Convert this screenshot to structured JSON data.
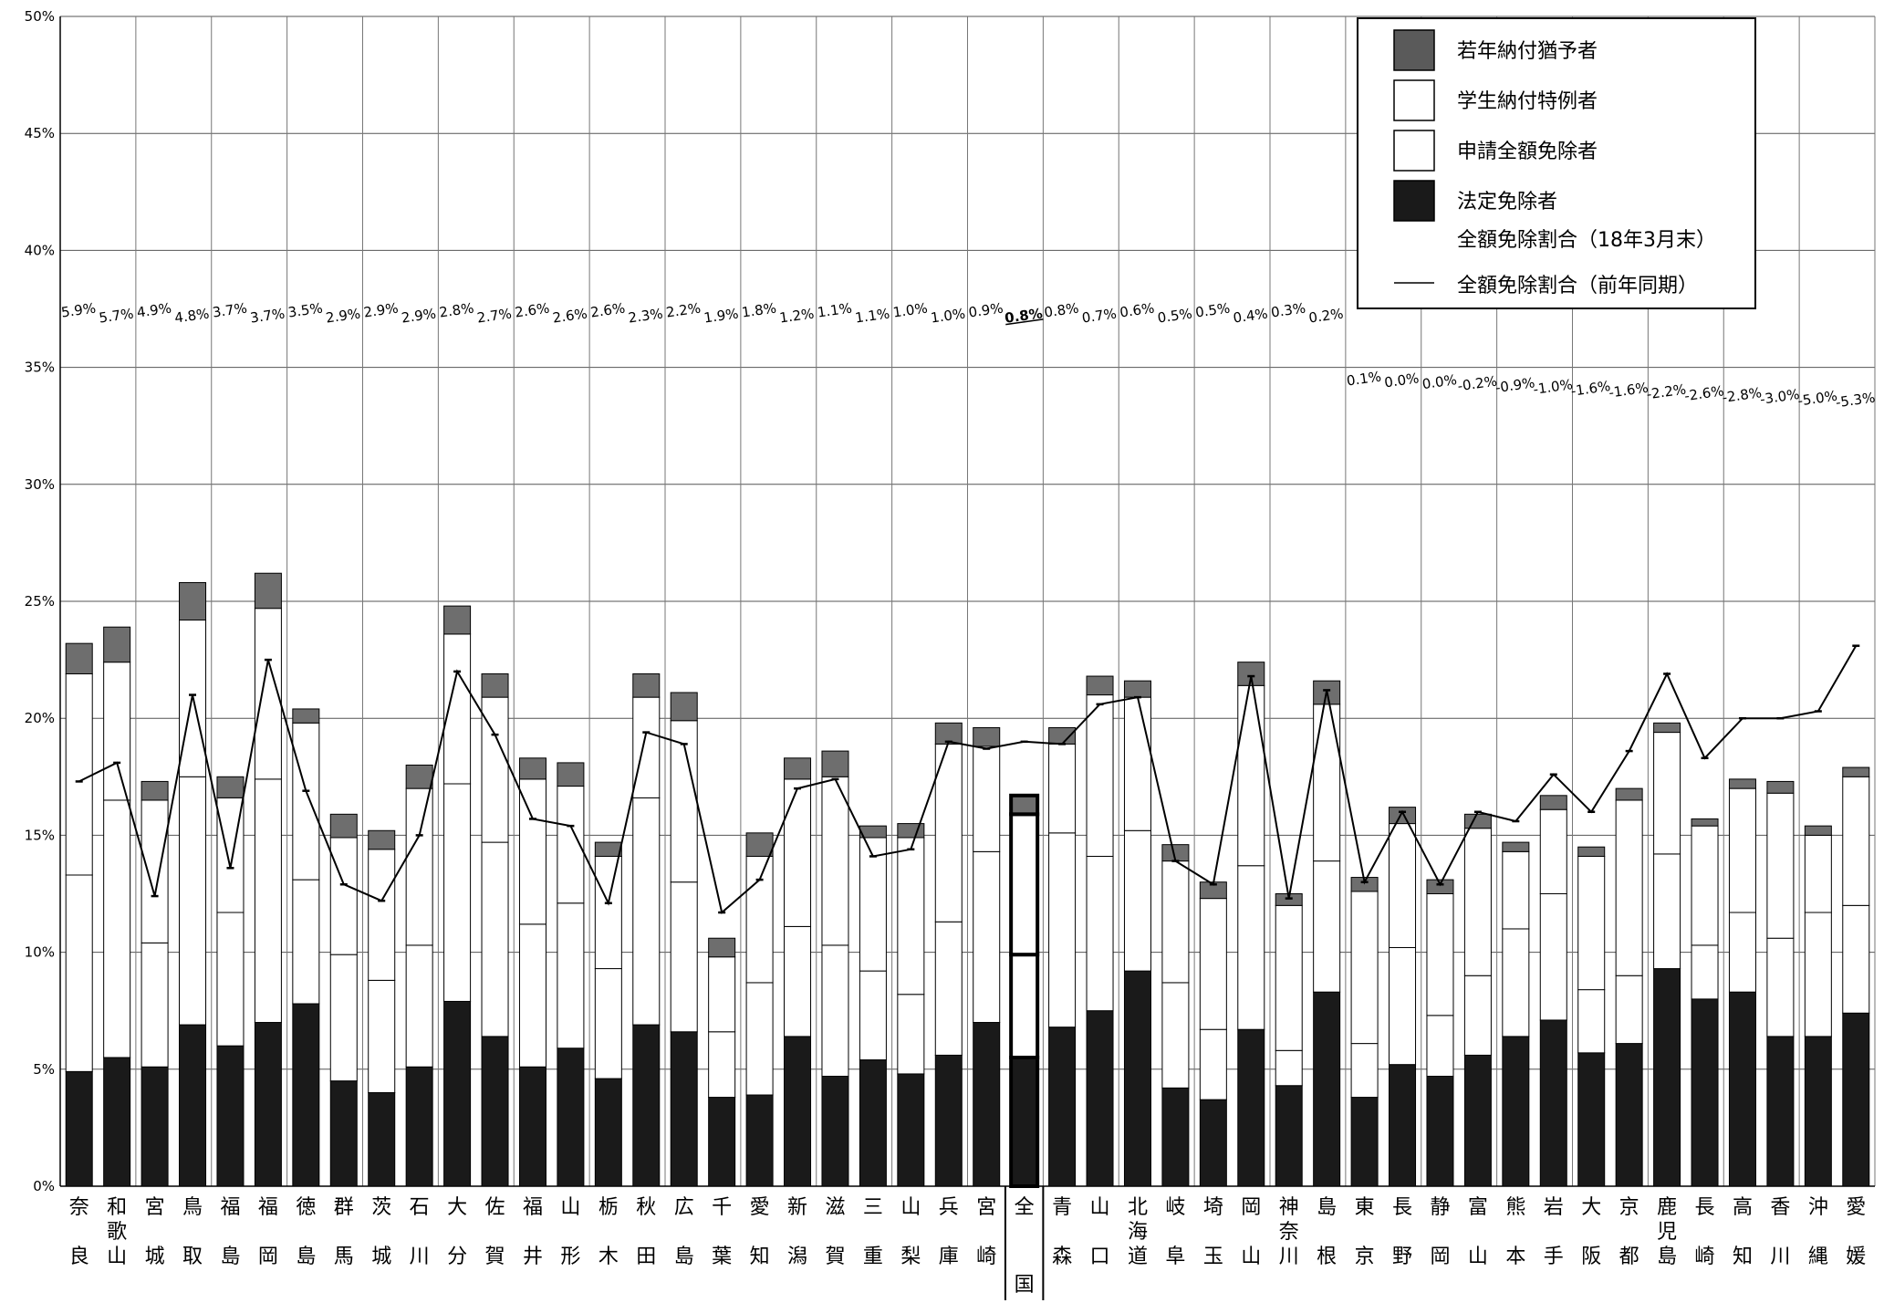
{
  "chart_data": {
    "type": "bar",
    "stacked": true,
    "title": "",
    "xlabel": "",
    "ylabel": "",
    "ylim": [
      0,
      50
    ],
    "y_ticks": [
      "0%",
      "5%",
      "10%",
      "15%",
      "20%",
      "25%",
      "30%",
      "35%",
      "40%",
      "45%",
      "50%"
    ],
    "grid": true,
    "legend_position": "top-right",
    "categories": [
      "奈良",
      "和歌山",
      "宮城",
      "鳥取",
      "福島",
      "福岡",
      "徳島",
      "群馬",
      "茨城",
      "石川",
      "大分",
      "佐賀",
      "福井",
      "山形",
      "栃木",
      "秋田",
      "広島",
      "千葉",
      "愛知",
      "新潟",
      "滋賀",
      "三重",
      "山梨",
      "兵庫",
      "宮崎",
      "全国",
      "青森",
      "山口",
      "北海道",
      "岐阜",
      "埼玉",
      "岡山",
      "神奈川",
      "島根",
      "東京",
      "長野",
      "静岡",
      "富山",
      "熊本",
      "岩手",
      "大阪",
      "京都",
      "鹿児島",
      "長崎",
      "高知",
      "香川",
      "沖縄",
      "愛媛"
    ],
    "highlight_category": "全国",
    "series": [
      {
        "name": "法定免除者",
        "color": "#1a1a1a",
        "values": [
          4.9,
          5.5,
          5.1,
          6.9,
          6.0,
          7.0,
          7.8,
          4.5,
          4.0,
          5.1,
          7.9,
          6.4,
          5.1,
          5.9,
          4.6,
          6.9,
          6.6,
          3.8,
          3.9,
          6.4,
          4.7,
          5.4,
          4.8,
          5.6,
          7.0,
          5.5,
          6.8,
          7.5,
          9.2,
          4.2,
          3.7,
          6.7,
          4.3,
          8.3,
          3.8,
          5.2,
          4.7,
          5.6,
          6.4,
          7.1,
          5.7,
          6.1,
          9.3,
          8.0,
          8.3,
          6.4,
          6.4,
          7.4
        ]
      },
      {
        "name": "申請全額免除者",
        "color": "#ffffff",
        "values": [
          8.4,
          11.0,
          5.3,
          10.6,
          5.7,
          10.4,
          5.3,
          5.4,
          4.8,
          5.2,
          9.3,
          8.3,
          6.1,
          6.2,
          4.7,
          9.7,
          6.4,
          2.8,
          4.8,
          4.7,
          5.6,
          3.8,
          3.4,
          5.7,
          7.3,
          4.4,
          8.3,
          6.6,
          6.0,
          4.5,
          3.0,
          7.0,
          1.5,
          5.6,
          2.3,
          5.0,
          2.6,
          3.4,
          4.6,
          5.4,
          2.7,
          2.9,
          4.9,
          2.3,
          3.4,
          4.2,
          5.3,
          4.6
        ]
      },
      {
        "name": "学生納付特例者",
        "color": "#ffffff",
        "values": [
          8.6,
          5.9,
          6.1,
          6.7,
          4.9,
          7.3,
          6.7,
          5.0,
          5.6,
          6.7,
          6.4,
          6.2,
          6.2,
          5.0,
          4.8,
          4.3,
          6.9,
          3.2,
          5.4,
          6.3,
          7.2,
          5.7,
          6.7,
          7.6,
          4.5,
          6.0,
          3.8,
          6.9,
          5.7,
          5.2,
          5.6,
          7.7,
          6.2,
          6.7,
          6.5,
          5.3,
          5.2,
          6.3,
          3.3,
          3.6,
          5.7,
          7.5,
          5.2,
          5.1,
          5.3,
          6.2,
          3.3,
          5.5
        ]
      },
      {
        "name": "若年納付猶予者",
        "color": "#6e6e6e",
        "values": [
          1.3,
          1.5,
          0.8,
          1.6,
          0.9,
          1.5,
          0.6,
          1.0,
          0.8,
          1.0,
          1.2,
          1.0,
          0.9,
          1.0,
          0.6,
          1.0,
          1.2,
          0.8,
          1.0,
          0.9,
          1.1,
          0.5,
          0.6,
          0.9,
          0.8,
          0.8,
          0.7,
          0.8,
          0.7,
          0.7,
          0.7,
          1.0,
          0.5,
          1.0,
          0.6,
          0.7,
          0.6,
          0.6,
          0.4,
          0.6,
          0.4,
          0.5,
          0.4,
          0.3,
          0.4,
          0.5,
          0.4,
          0.4
        ]
      }
    ],
    "line_series": [
      {
        "name": "全額免除割合（前年同期）",
        "values": [
          17.3,
          18.1,
          12.4,
          21.0,
          13.6,
          22.5,
          16.9,
          12.9,
          12.2,
          15.0,
          22.0,
          19.3,
          15.7,
          15.4,
          12.1,
          19.4,
          18.9,
          11.7,
          13.1,
          17.0,
          17.4,
          14.1,
          14.4,
          19.0,
          18.7,
          19.0,
          18.9,
          20.6,
          20.9,
          13.9,
          12.9,
          21.8,
          12.3,
          21.2,
          13.0,
          16.0,
          12.9,
          16.0,
          15.6,
          17.6,
          16.0,
          18.6,
          21.9,
          18.3,
          20.0,
          20.0,
          20.3,
          23.1
        ]
      }
    ],
    "diff_labels": [
      "5.9%",
      "5.7%",
      "4.9%",
      "4.8%",
      "3.7%",
      "3.7%",
      "3.5%",
      "2.9%",
      "2.9%",
      "2.9%",
      "2.8%",
      "2.7%",
      "2.6%",
      "2.6%",
      "2.6%",
      "2.3%",
      "2.2%",
      "1.9%",
      "1.8%",
      "1.2%",
      "1.1%",
      "1.1%",
      "1.0%",
      "1.0%",
      "0.9%",
      "0.8%",
      "0.8%",
      "0.7%",
      "0.6%",
      "0.5%",
      "0.5%",
      "0.4%",
      "0.3%",
      "0.2%",
      "0.1%",
      "0.0%",
      "0.0%",
      "-0.2%",
      "-0.9%",
      "-1.0%",
      "-1.6%",
      "-1.6%",
      "-2.2%",
      "-2.6%",
      "-2.8%",
      "-3.0%",
      "-5.0%",
      "-5.3%"
    ],
    "legend": [
      {
        "label": "若年納付猶予者",
        "swatch": "dark-gray"
      },
      {
        "label": "学生納付特例者",
        "swatch": "white"
      },
      {
        "label": "申請全額免除者",
        "swatch": "white"
      },
      {
        "label": "法定免除者",
        "swatch": "black"
      },
      {
        "label": "全額免除割合（18年3月末）",
        "swatch": "none"
      },
      {
        "label": "全額免除割合（前年同期）",
        "swatch": "line"
      }
    ]
  }
}
